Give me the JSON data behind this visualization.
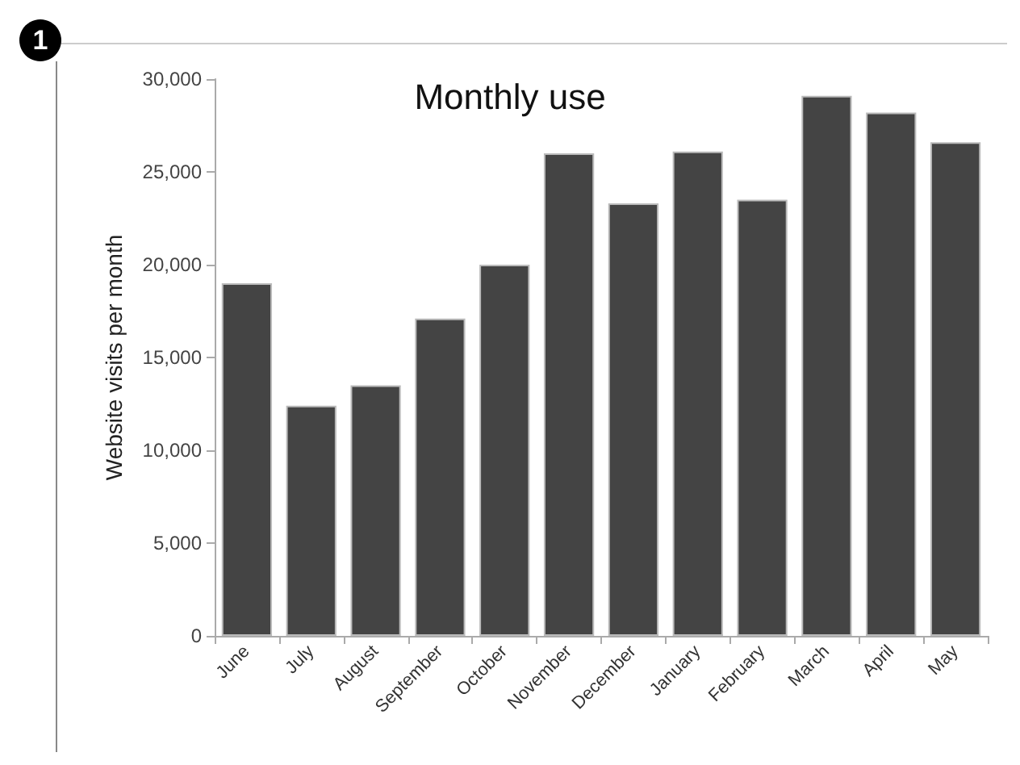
{
  "chart_data": {
    "type": "bar",
    "title": "Monthly use",
    "ylabel": "Website visits per month",
    "categories": [
      "June",
      "July",
      "August",
      "September",
      "October",
      "November",
      "December",
      "January",
      "February",
      "March",
      "April",
      "May"
    ],
    "values": [
      19000,
      12400,
      13500,
      17100,
      20000,
      26000,
      23300,
      26100,
      23500,
      29100,
      28200,
      26600
    ],
    "color": "#444444",
    "ylim": [
      0,
      30000
    ],
    "yticks": [
      0,
      {
        "value": 5000,
        "label": "5,000"
      },
      {
        "value": 10000,
        "label": "10,000"
      },
      {
        "value": 15000,
        "label": "15,000"
      },
      {
        "value": 20000,
        "label": "20,000"
      },
      {
        "value": 25000,
        "label": "25,000"
      },
      {
        "value": 30000,
        "label": "30,000"
      }
    ],
    "grid": false,
    "annotations": [
      "1"
    ]
  }
}
